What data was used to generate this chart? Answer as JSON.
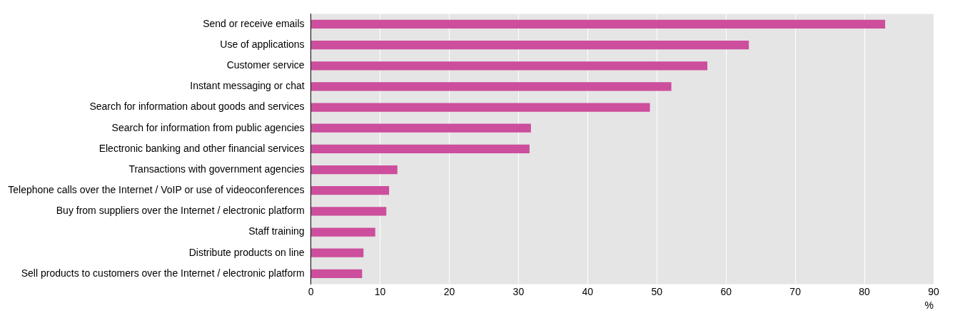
{
  "chart_data": {
    "type": "bar",
    "orientation": "horizontal",
    "categories": [
      "Send or receive emails",
      "Use of applications",
      "Customer service",
      "Instant messaging or chat",
      "Search for information about goods and services",
      "Search for information from public agencies",
      "Electronic banking and other financial services",
      "Transactions with government agencies",
      "Telephone calls over the Internet / VoIP or use of videoconferences",
      "Buy from suppliers over the Internet / electronic platform",
      "Staff training",
      "Distribute products on line",
      "Sell products to customers over the Internet / electronic platform"
    ],
    "values": [
      83.0,
      63.3,
      57.3,
      52.1,
      49.0,
      31.8,
      31.6,
      12.5,
      11.3,
      10.9,
      9.3,
      7.6,
      7.4
    ],
    "color": "#cc4e9c",
    "xlabel": "%",
    "xlim": [
      0,
      90
    ],
    "xticks": [
      0,
      10,
      20,
      30,
      40,
      50,
      60,
      70,
      80,
      90
    ],
    "grid": "x",
    "legend": false
  }
}
